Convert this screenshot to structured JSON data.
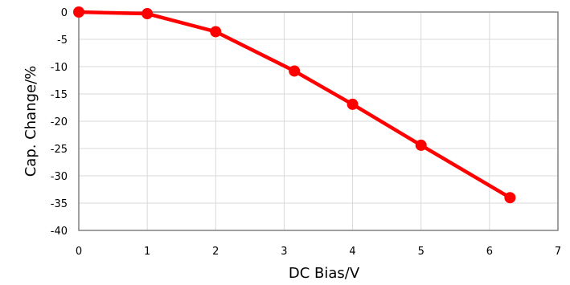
{
  "chart_data": {
    "type": "line",
    "title": "",
    "xlabel": "DC Bias/V",
    "ylabel": "Cap. Change/%",
    "xlim": [
      0,
      7
    ],
    "ylim": [
      -40,
      0
    ],
    "x_ticks": [
      0,
      1,
      2,
      3,
      4,
      5,
      6,
      7
    ],
    "y_ticks": [
      0,
      -5,
      -10,
      -15,
      -20,
      -25,
      -30,
      -35,
      -40
    ],
    "x_tick_labels": [
      "0",
      "1",
      "2",
      "3",
      "4",
      "5",
      "6",
      "7"
    ],
    "y_tick_labels": [
      "0",
      "-5",
      "-10",
      "-15",
      "-20",
      "-25",
      "-30",
      "-35",
      "-40"
    ],
    "grid": true,
    "legend": "none",
    "colors": {
      "series": "#ff0000",
      "grid": "#d9d9d9",
      "frame": "#808080"
    },
    "series": [
      {
        "x": [
          0,
          1,
          2,
          3.15,
          4,
          5,
          6.3
        ],
        "y": [
          0,
          -0.3,
          -3.6,
          -10.8,
          -16.9,
          -24.4,
          -34
        ]
      }
    ]
  }
}
